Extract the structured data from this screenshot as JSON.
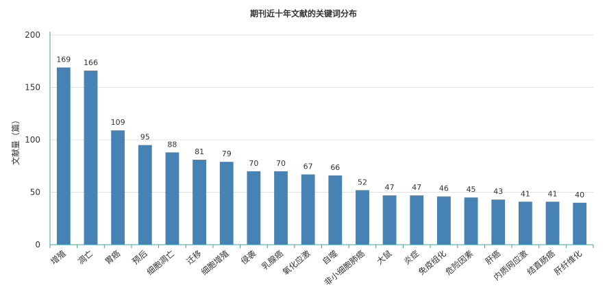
{
  "chart_data": {
    "type": "bar",
    "title": "期刊近十年文献的关键词分布",
    "xlabel": "",
    "ylabel": "文献量（篇）",
    "ylim": [
      0,
      200
    ],
    "yticks": [
      0,
      50,
      100,
      150,
      200
    ],
    "grid": true,
    "categories": [
      "增殖",
      "凋亡",
      "胃癌",
      "预后",
      "细胞凋亡",
      "迁移",
      "细胞增殖",
      "侵袭",
      "乳腺癌",
      "氧化应激",
      "自噬",
      "非小细胞肺癌",
      "大鼠",
      "炎症",
      "免疫组化",
      "危险因素",
      "肝癌",
      "内质网应激",
      "结直肠癌",
      "肝纤维化"
    ],
    "values": [
      169,
      166,
      109,
      95,
      88,
      81,
      79,
      70,
      70,
      67,
      66,
      52,
      47,
      47,
      46,
      45,
      43,
      41,
      41,
      40
    ],
    "colors": {
      "bar": "#4682b4",
      "axis": "#3ba69e",
      "grid": "#e0e0e0",
      "text": "#333333"
    }
  }
}
